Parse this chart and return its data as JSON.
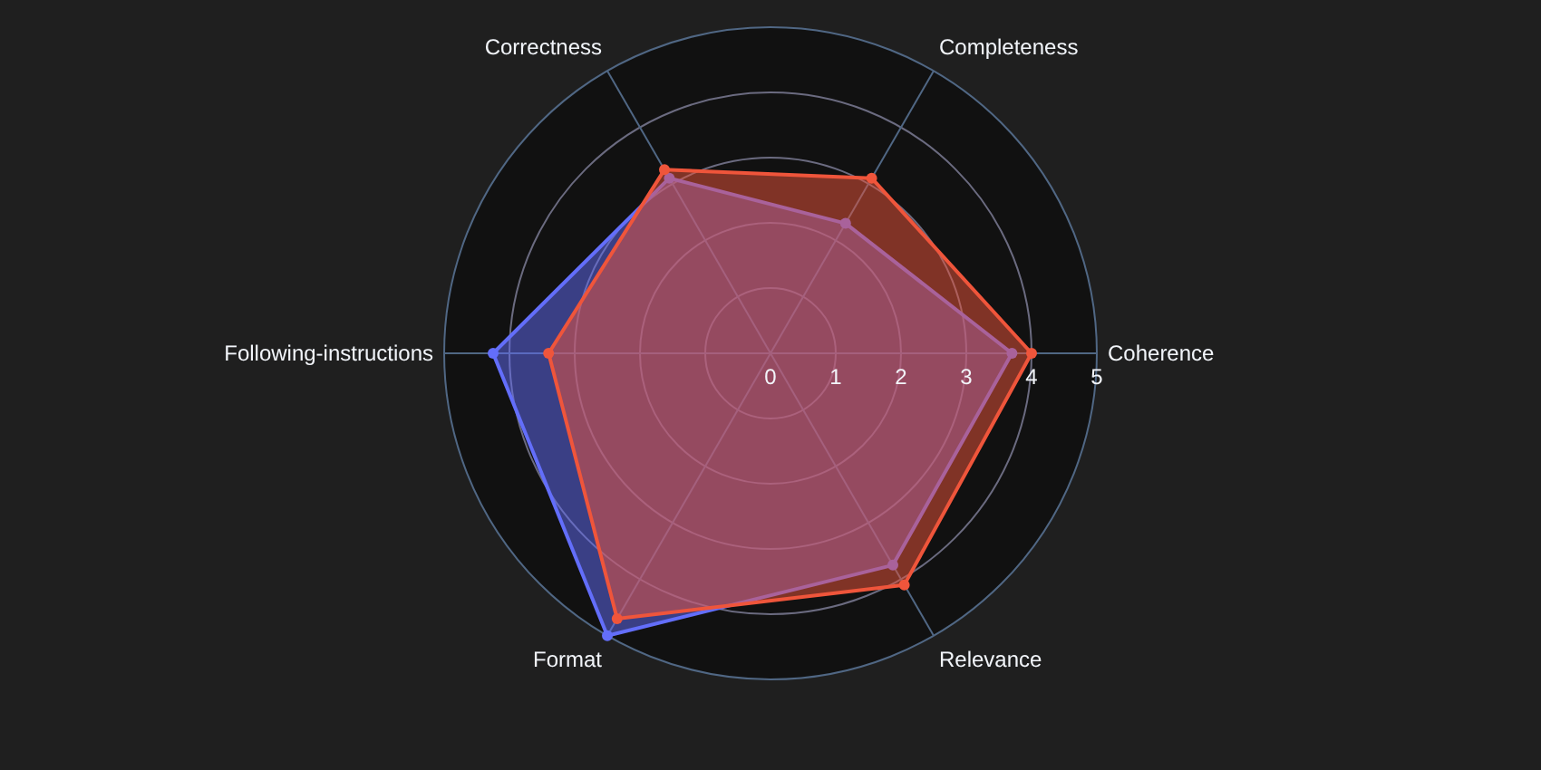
{
  "chart_data": {
    "type": "radar",
    "categories": [
      "Completeness",
      "Coherence",
      "Relevance",
      "Format",
      "Following-instructions",
      "Correctness"
    ],
    "series": [
      {
        "color": "#636efa",
        "values": [
          2.3,
          3.7,
          3.75,
          5.0,
          4.25,
          3.1
        ]
      },
      {
        "color": "#ef553b",
        "values": [
          3.1,
          4.0,
          4.1,
          4.7,
          3.4,
          3.25
        ]
      }
    ],
    "ylim": [
      0,
      5
    ],
    "yticks": [
      0,
      1,
      2,
      3,
      4,
      5
    ],
    "grid": true,
    "marker": "circle"
  }
}
